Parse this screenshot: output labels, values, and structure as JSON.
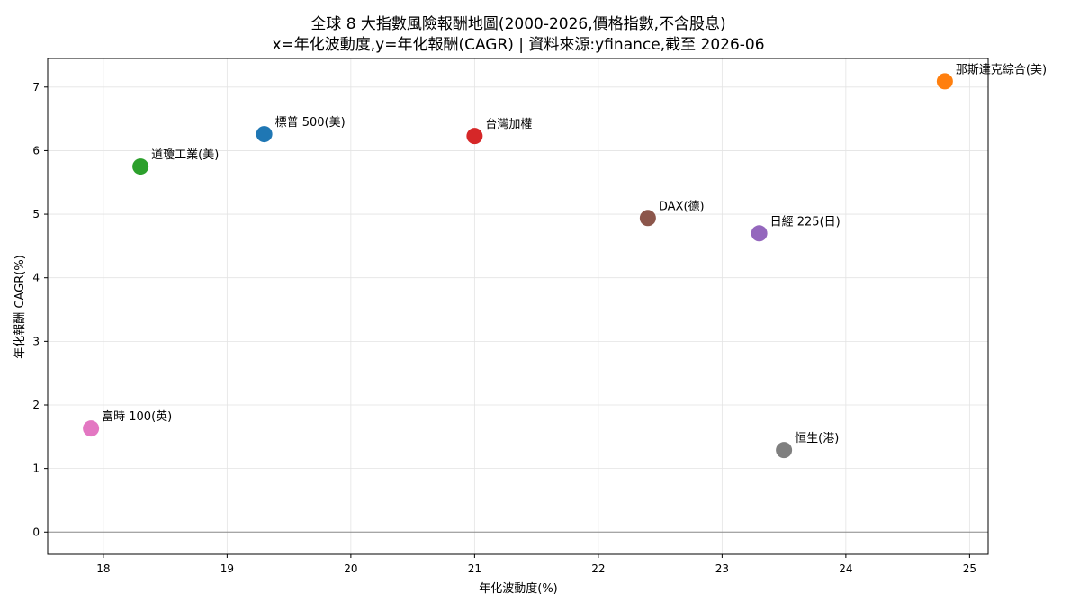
{
  "chart_data": {
    "type": "scatter",
    "title": "全球 8 大指數風險報酬地圖(2000-2026,價格指數,不含股息)",
    "subtitle": "x=年化波動度,y=年化報酬(CAGR) | 資料來源:yfinance,截至 2026-06",
    "xlabel": "年化波動度(%)",
    "ylabel": "年化報酬 CAGR(%)",
    "xlim": [
      17.55,
      25.15
    ],
    "ylim": [
      -0.35,
      7.45
    ],
    "xticks": [
      18,
      19,
      20,
      21,
      22,
      23,
      24,
      25
    ],
    "yticks": [
      0,
      1,
      2,
      3,
      4,
      5,
      6,
      7
    ],
    "grid": true,
    "zero_line": true,
    "points": [
      {
        "label": "標普 500(美)",
        "x": 19.3,
        "y": 6.26,
        "color": "#1f77b4"
      },
      {
        "label": "那斯達克綜合(美)",
        "x": 24.8,
        "y": 7.09,
        "color": "#ff7f0e"
      },
      {
        "label": "道瓊工業(美)",
        "x": 18.3,
        "y": 5.75,
        "color": "#2ca02c"
      },
      {
        "label": "台灣加權",
        "x": 21.0,
        "y": 6.23,
        "color": "#d62728"
      },
      {
        "label": "日經 225(日)",
        "x": 23.3,
        "y": 4.7,
        "color": "#9467bd"
      },
      {
        "label": "DAX(德)",
        "x": 22.4,
        "y": 4.94,
        "color": "#8c564b"
      },
      {
        "label": "富時 100(英)",
        "x": 17.9,
        "y": 1.63,
        "color": "#e377c2"
      },
      {
        "label": "恒生(港)",
        "x": 23.5,
        "y": 1.29,
        "color": "#7f7f7f"
      }
    ]
  }
}
